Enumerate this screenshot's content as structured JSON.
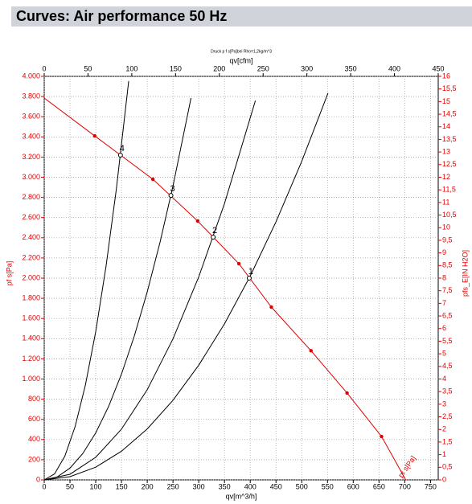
{
  "chart_data": {
    "type": "line",
    "title": "Curves: Air performance 50 Hz",
    "subtitle": "Druck p f s[Pa]bei Rho=1,2kg/m^3",
    "xlabel": "qv[m^3/h]",
    "x2label": "qv[cfm]",
    "ylabel": "pf s[Pa]",
    "y2label": "pfs_E[IN H2O]",
    "xlim": [
      0,
      765
    ],
    "xticks": [
      0,
      50,
      100,
      150,
      200,
      250,
      300,
      350,
      400,
      450,
      500,
      550,
      600,
      650,
      700,
      750
    ],
    "x2lim": [
      0,
      450
    ],
    "x2ticks": [
      0,
      50,
      100,
      150,
      200,
      250,
      300,
      350,
      400,
      450
    ],
    "ylim": [
      0,
      4000
    ],
    "yticks": [
      0,
      200,
      400,
      600,
      800,
      {
        "value": 1000,
        "label": "1.000"
      },
      {
        "value": 1200,
        "label": "1.200"
      },
      {
        "value": 1400,
        "label": "1.400"
      },
      {
        "value": 1600,
        "label": "1.600"
      },
      {
        "value": 1800,
        "label": "1.800"
      },
      {
        "value": 2000,
        "label": "2.000"
      },
      {
        "value": 2200,
        "label": "2.200"
      },
      {
        "value": 2400,
        "label": "2.400"
      },
      {
        "value": 2600,
        "label": "2.600"
      },
      {
        "value": 2800,
        "label": "2.800"
      },
      {
        "value": 3000,
        "label": "3.000"
      },
      {
        "value": 3200,
        "label": "3.200"
      },
      {
        "value": 3400,
        "label": "3.400"
      },
      {
        "value": 3600,
        "label": "3.600"
      },
      {
        "value": 3800,
        "label": "3.800"
      },
      {
        "value": 4000,
        "label": "4.000"
      }
    ],
    "y2lim": [
      0,
      16
    ],
    "y2ticks": [
      0,
      {
        "value": 0.5,
        "label": "0,5"
      },
      1,
      {
        "value": 1.5,
        "label": "1,5"
      },
      2,
      {
        "value": 2.5,
        "label": "2,5"
      },
      3,
      {
        "value": 3.5,
        "label": "3,5"
      },
      4,
      {
        "value": 4.5,
        "label": "4,5"
      },
      5,
      {
        "value": 5.5,
        "label": "5,5"
      },
      6,
      {
        "value": 6.5,
        "label": "6,5"
      },
      7,
      {
        "value": 7.5,
        "label": "7,5"
      },
      8,
      {
        "value": 8.5,
        "label": "8,5"
      },
      9,
      {
        "value": 9.5,
        "label": "9,5"
      },
      10,
      {
        "value": 10.5,
        "label": "10,5"
      },
      11,
      {
        "value": 11.5,
        "label": "11,5"
      },
      12,
      {
        "value": 12.5,
        "label": "12,5"
      },
      13,
      {
        "value": 13.5,
        "label": "13,5"
      },
      14,
      {
        "value": 14.5,
        "label": "14,5"
      },
      15,
      {
        "value": 15.5,
        "label": "15,5"
      },
      16
    ],
    "grid": true,
    "series": [
      {
        "name": "pf s[Pa]",
        "color": "#e00000",
        "x": [
          0,
          98,
          211,
          298,
          378,
          441,
          518,
          588,
          655,
          702
        ],
        "values": [
          3785,
          3410,
          2980,
          2566,
          2143,
          1713,
          1280,
          861,
          430,
          0
        ]
      },
      {
        "color": "#000000",
        "x": [
          0,
          50,
          100,
          150,
          200,
          250,
          300,
          350,
          400,
          450,
          500,
          551
        ],
        "values": [
          0,
          32,
          126,
          284,
          505,
          789,
          1137,
          1547,
          2021,
          2558,
          3158,
          3834
        ]
      },
      {
        "color": "#000000",
        "x": [
          0,
          50,
          100,
          150,
          200,
          250,
          300,
          350,
          410
        ],
        "values": [
          0,
          56,
          224,
          503,
          894,
          1398,
          2012,
          2739,
          3759
        ]
      },
      {
        "color": "#000000",
        "x": [
          0,
          25,
          50,
          75,
          100,
          125,
          150,
          175,
          200,
          225,
          250,
          285
        ],
        "values": [
          0,
          29,
          117,
          262,
          466,
          728,
          1049,
          1427,
          1864,
          2359,
          2913,
          3785
        ]
      },
      {
        "color": "#000000",
        "x": [
          0,
          20,
          40,
          60,
          80,
          100,
          120,
          140,
          164
        ],
        "values": [
          0,
          59,
          235,
          529,
          941,
          1470,
          2117,
          2881,
          3954
        ]
      }
    ],
    "points": [
      {
        "label": "1",
        "x": 398,
        "y": 2000
      },
      {
        "label": "2",
        "x": 328,
        "y": 2406
      },
      {
        "label": "3",
        "x": 246,
        "y": 2820
      },
      {
        "label": "4",
        "x": 148,
        "y": 3219
      }
    ]
  }
}
